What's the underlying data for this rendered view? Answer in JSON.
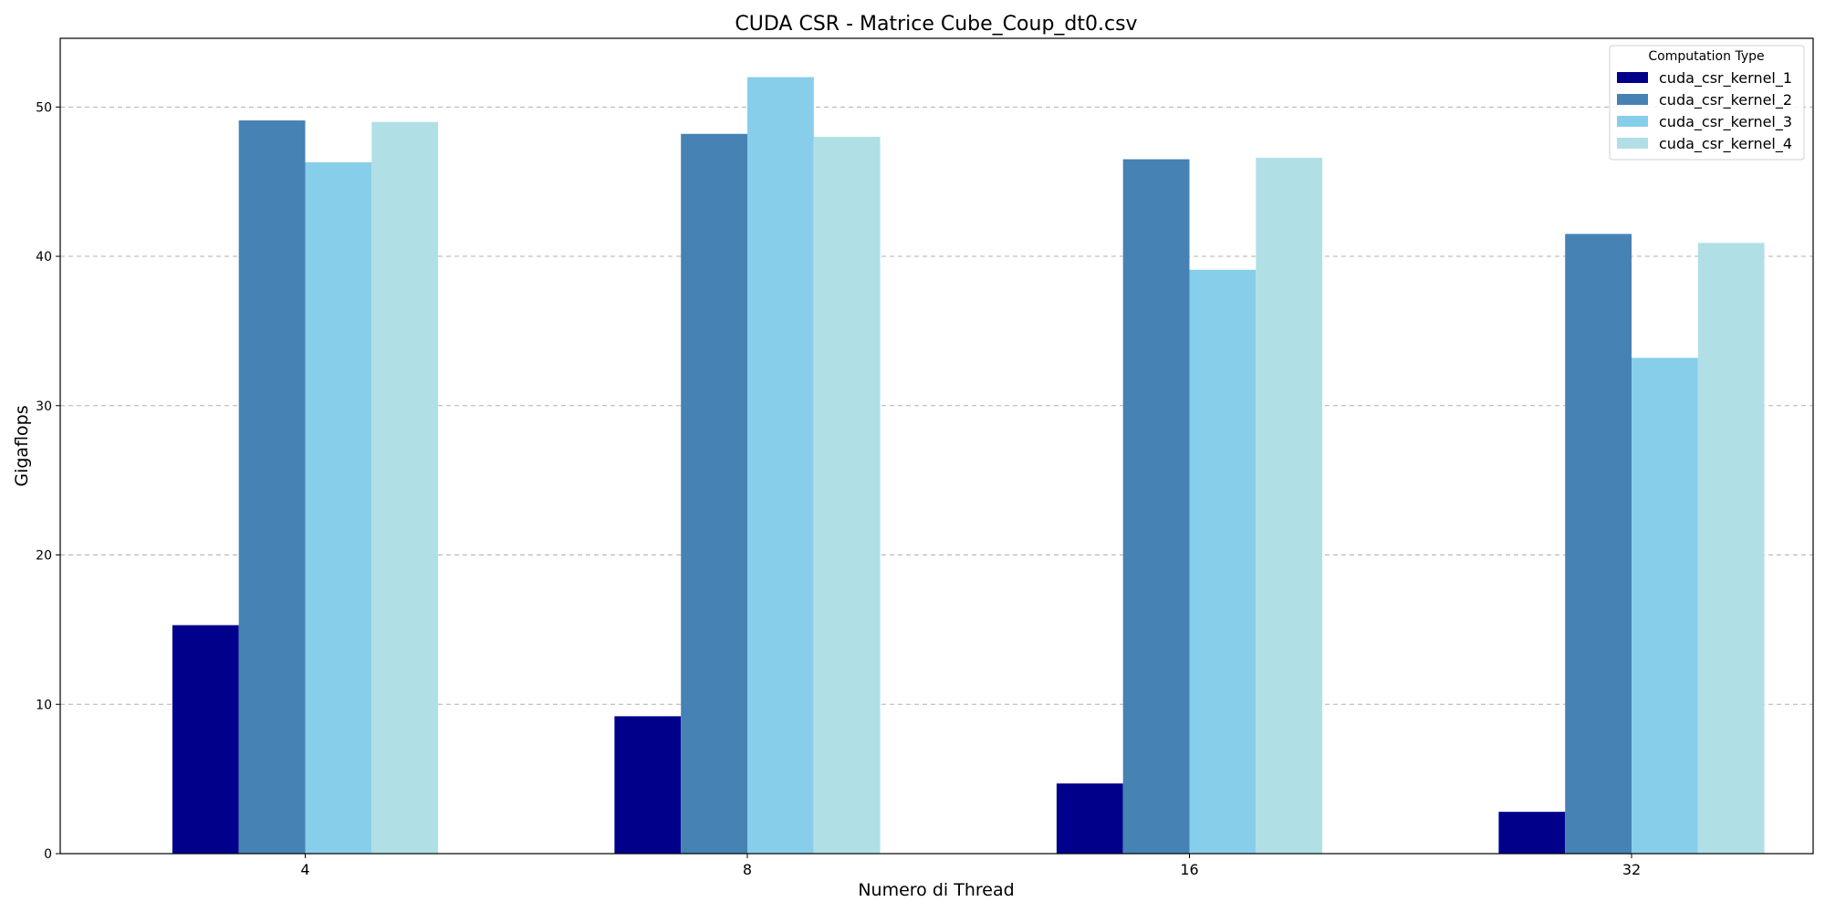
{
  "chart_data": {
    "type": "bar",
    "title": "CUDA CSR - Matrice Cube_Coup_dt0.csv",
    "xlabel": "Numero di Thread",
    "ylabel": "Gigaflops",
    "categories": [
      "4",
      "8",
      "16",
      "32"
    ],
    "ylim": [
      0,
      54.6
    ],
    "yticks": [
      0,
      10,
      20,
      30,
      40,
      50
    ],
    "grid": "y-dashed",
    "legend": {
      "title": "Computation Type",
      "position": "top-right"
    },
    "series": [
      {
        "name": "cuda_csr_kernel_1",
        "color": "#00008B",
        "values": [
          15.3,
          9.2,
          4.7,
          2.8
        ]
      },
      {
        "name": "cuda_csr_kernel_2",
        "color": "#4682B4",
        "values": [
          49.1,
          48.2,
          46.5,
          41.5
        ]
      },
      {
        "name": "cuda_csr_kernel_3",
        "color": "#87CEEB",
        "values": [
          46.3,
          52.0,
          39.1,
          33.2
        ]
      },
      {
        "name": "cuda_csr_kernel_4",
        "color": "#B0E0E6",
        "values": [
          49.0,
          48.0,
          46.6,
          40.9
        ]
      }
    ]
  }
}
